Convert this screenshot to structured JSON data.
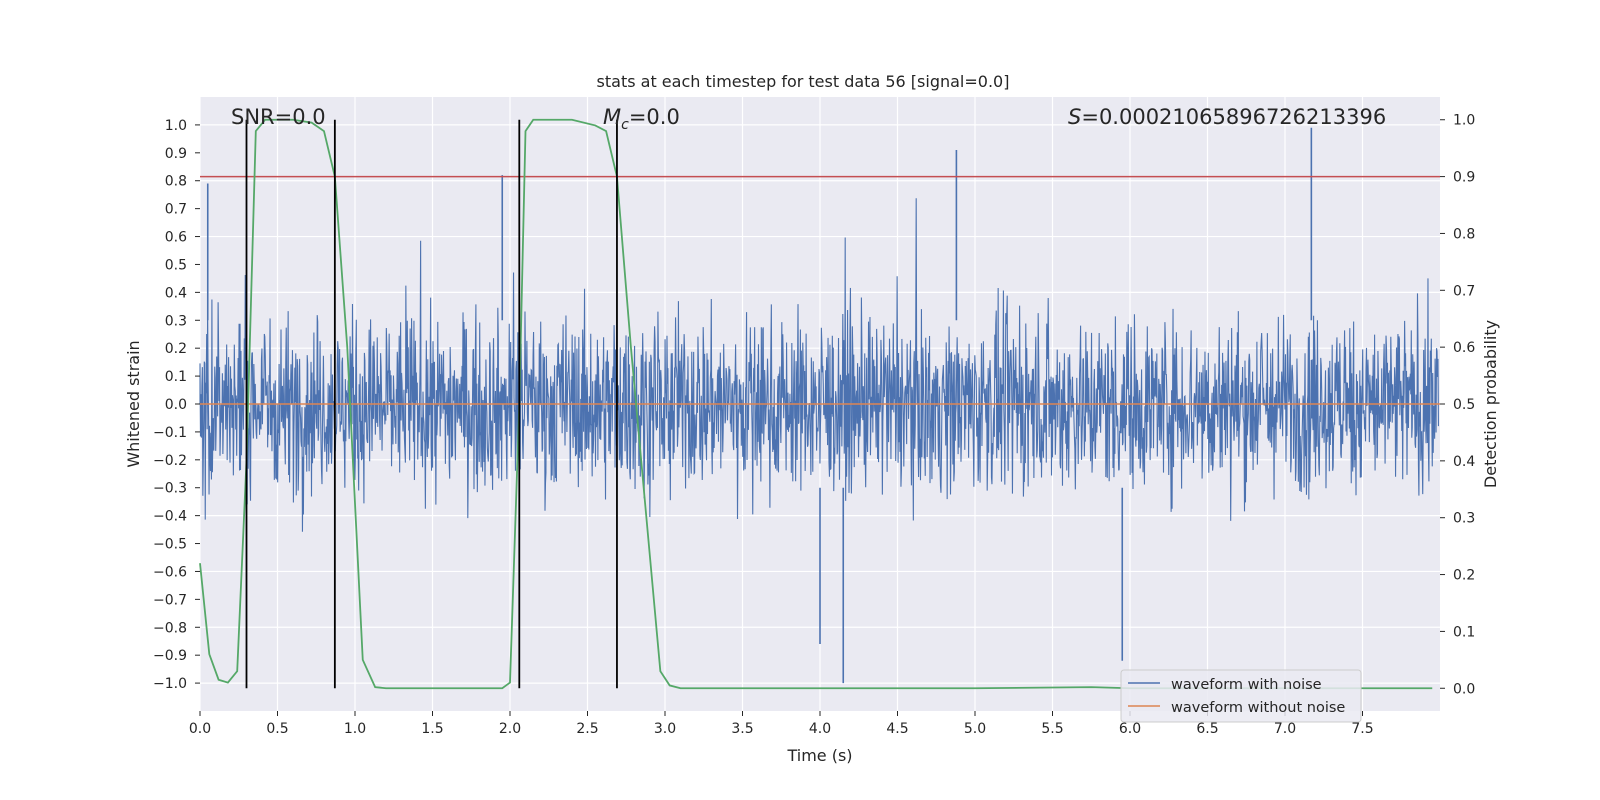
{
  "chart_data": {
    "type": "line",
    "title": "stats at each timestep for test data 56 [signal=0.0]",
    "xlabel": "Time (s)",
    "ylabel": "Whitened strain",
    "y2label": "Detection probability",
    "xlim": [
      0.0,
      8.0
    ],
    "ylim": [
      -1.1,
      1.1
    ],
    "y2lim": [
      -0.04,
      1.04
    ],
    "xticks": [
      "0.0",
      "0.5",
      "1.0",
      "1.5",
      "2.0",
      "2.5",
      "3.0",
      "3.5",
      "4.0",
      "4.5",
      "5.0",
      "5.5",
      "6.0",
      "6.5",
      "7.0",
      "7.5"
    ],
    "yticks": [
      "1.0",
      "0.9",
      "0.8",
      "0.7",
      "0.6",
      "0.5",
      "0.4",
      "0.3",
      "0.2",
      "0.1",
      "0.0",
      "−0.1",
      "−0.2",
      "−0.3",
      "−0.4",
      "−0.5",
      "−0.6",
      "−0.7",
      "−0.8",
      "−0.9",
      "−1.0"
    ],
    "y2ticks": [
      "1.0",
      "0.9",
      "0.8",
      "0.7",
      "0.6",
      "0.5",
      "0.4",
      "0.3",
      "0.2",
      "0.1",
      "0.0"
    ],
    "annotations": {
      "snr_label": "SNR=0.0",
      "mc_symbol": "M",
      "mc_subscript": "c",
      "mc_value": "=0.0",
      "s_symbol": "S",
      "s_value": "=0.00021065896726213396"
    },
    "threshold_y2": 0.9,
    "vertical_lines_x": [
      0.3,
      0.87,
      2.06,
      2.69
    ],
    "detection_probability": {
      "name": "detection probability",
      "x": [
        0.0,
        0.06,
        0.12,
        0.18,
        0.24,
        0.3,
        0.36,
        0.42,
        0.5,
        0.6,
        0.72,
        0.8,
        0.87,
        0.95,
        1.05,
        1.13,
        1.2,
        1.4,
        1.8,
        1.95,
        2.0,
        2.06,
        2.1,
        2.15,
        2.25,
        2.4,
        2.55,
        2.62,
        2.69,
        2.78,
        2.88,
        2.97,
        3.03,
        3.1,
        3.4,
        4.0,
        5.0,
        5.75,
        6.0,
        7.0,
        7.95
      ],
      "y": [
        0.22,
        0.06,
        0.015,
        0.01,
        0.03,
        0.4,
        0.98,
        1.0,
        1.0,
        1.0,
        0.995,
        0.98,
        0.9,
        0.6,
        0.05,
        0.002,
        0.0,
        0.0,
        0.0,
        0.0,
        0.01,
        0.5,
        0.98,
        1.0,
        1.0,
        1.0,
        0.99,
        0.98,
        0.9,
        0.6,
        0.3,
        0.03,
        0.005,
        0.0,
        0.0,
        0.0,
        0.0,
        0.002,
        0.0,
        0.0,
        0.0
      ]
    },
    "noise_waveform": {
      "name": "waveform with noise",
      "description_stats": "approx. uniform noise, typical range −0.5 to 0.5, occasional spikes to ±1.0",
      "notable_spikes": [
        {
          "x": 0.05,
          "y": 0.79
        },
        {
          "x": 1.95,
          "y": 0.82
        },
        {
          "x": 4.88,
          "y": 0.91
        },
        {
          "x": 7.17,
          "y": 0.99
        },
        {
          "x": 4.15,
          "y": -1.0
        },
        {
          "x": 5.95,
          "y": -0.92
        },
        {
          "x": 4.0,
          "y": -0.86
        }
      ]
    },
    "clean_waveform": {
      "name": "waveform without noise",
      "value": 0.0
    },
    "legend": {
      "placement": "lower-right",
      "entries": [
        "waveform with noise",
        "waveform without noise"
      ]
    },
    "colors": {
      "noise": "#4c72b0",
      "clean": "#dd8452",
      "probability": "#55a868",
      "threshold": "#c44e52",
      "vlines": "#000000",
      "axes_bg": "#eaeaf2",
      "grid": "#ffffff"
    }
  }
}
